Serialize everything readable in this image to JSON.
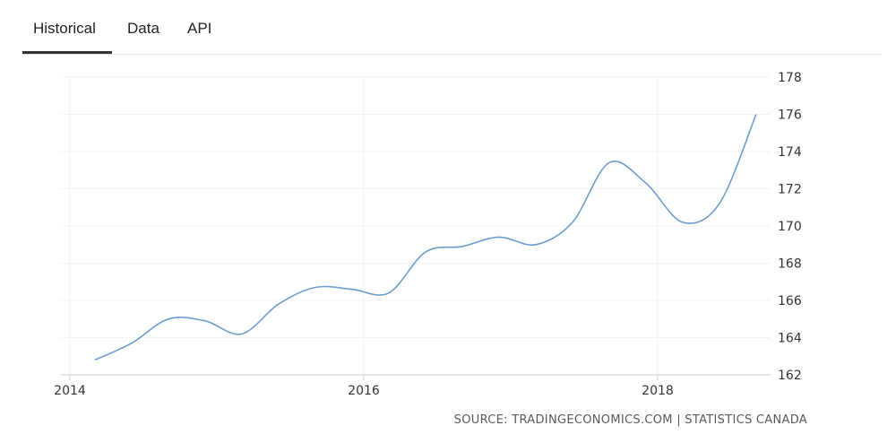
{
  "tabs": {
    "historical": "Historical",
    "data": "Data",
    "api": "API"
  },
  "source": "SOURCE: TRADINGECONOMICS.COM | STATISTICS CANADA",
  "colors": {
    "line": "#6d9ecf",
    "grid": "#e9e9e9",
    "axis": "#cccccc"
  },
  "chart_data": {
    "type": "line",
    "grid": true,
    "xlim": [
      2014,
      2018.9
    ],
    "ylim": [
      162,
      178
    ],
    "x_ticks": [
      "2014",
      "2016",
      "2018"
    ],
    "y_ticks": [
      "162",
      "164",
      "166",
      "168",
      "170",
      "172",
      "174",
      "176",
      "178"
    ],
    "series": [
      {
        "x": [
          2014.17,
          2014.42,
          2014.67,
          2014.92,
          2015.17,
          2015.42,
          2015.67,
          2015.92,
          2016.17,
          2016.42,
          2016.67,
          2016.92,
          2017.17,
          2017.42,
          2017.67,
          2017.92,
          2018.17,
          2018.42,
          2018.67
        ],
        "values": [
          162.8,
          163.7,
          165.0,
          164.9,
          164.2,
          165.8,
          166.7,
          166.6,
          166.4,
          168.6,
          168.9,
          169.4,
          169.0,
          170.2,
          173.4,
          172.3,
          170.2,
          171.2,
          176.0
        ]
      }
    ]
  }
}
